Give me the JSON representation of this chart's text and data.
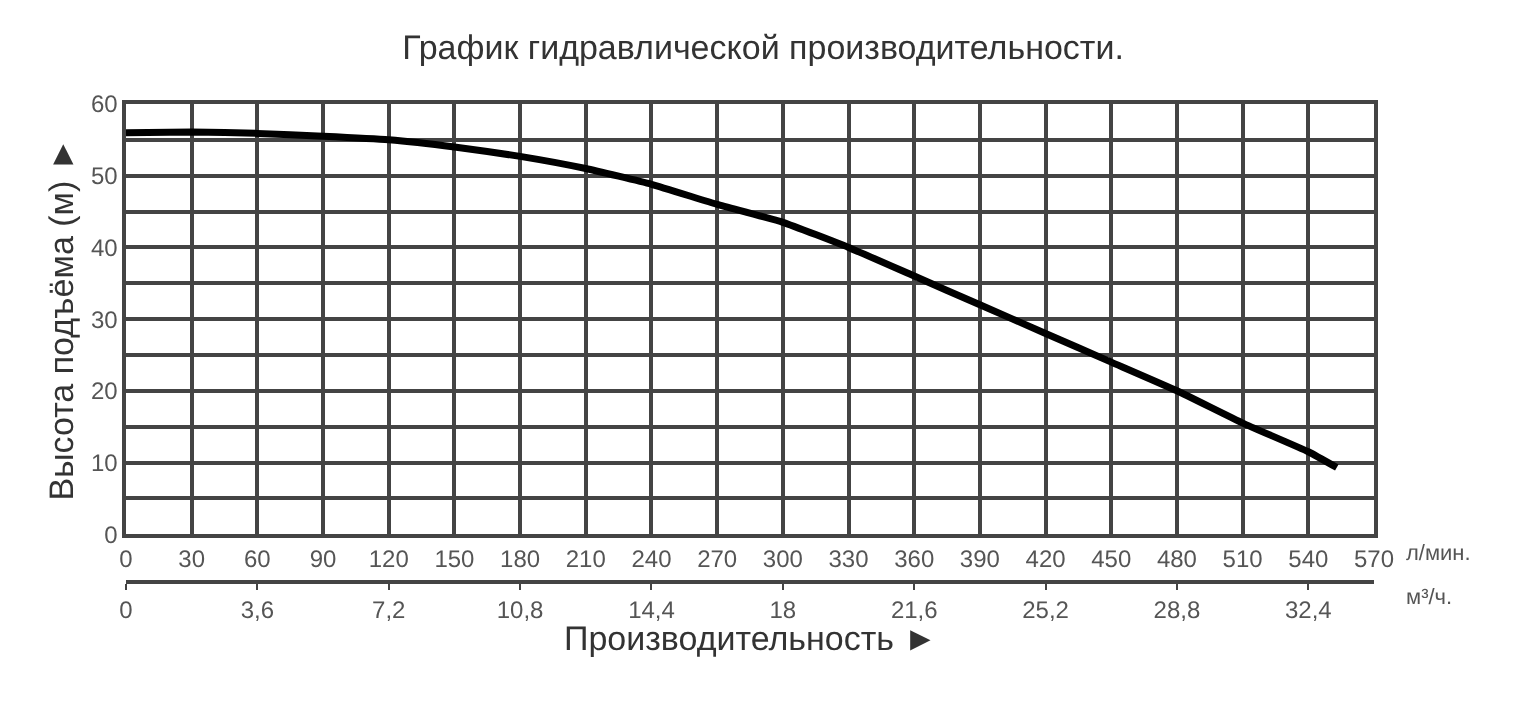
{
  "chart_data": {
    "type": "line",
    "title": "График гидравлической производительности.",
    "xlabel": "Производительность ►",
    "ylabel": "Высота подъёма (м) ►",
    "annotations": [
      "л/мин.",
      "м³/ч."
    ],
    "x": [
      0,
      30,
      60,
      90,
      120,
      150,
      180,
      210,
      240,
      270,
      300,
      330,
      360,
      390,
      420,
      450,
      480,
      510,
      540,
      553
    ],
    "series": [
      {
        "color": "#000000",
        "values": [
          56,
          56.1,
          55.9,
          55.5,
          55,
          54,
          52.7,
          51,
          48.8,
          46,
          43.5,
          40,
          36,
          32,
          28,
          24,
          20,
          15.5,
          11.5,
          9.3
        ]
      }
    ],
    "xlim": [
      0,
      570
    ],
    "xticks": [
      0,
      30,
      60,
      90,
      120,
      150,
      180,
      210,
      240,
      270,
      300,
      330,
      360,
      390,
      420,
      450,
      480,
      510,
      540,
      570
    ],
    "x2lim": [
      0,
      34.2
    ],
    "x2ticks": [
      0,
      {
        "value": 3.6,
        "label": "3,6"
      },
      {
        "value": 7.2,
        "label": "7,2"
      },
      {
        "value": 10.8,
        "label": "10,8"
      },
      {
        "value": 14.4,
        "label": "14,4"
      },
      18,
      {
        "value": 21.6,
        "label": "21,6"
      },
      {
        "value": 25.2,
        "label": "25,2"
      },
      {
        "value": 28.8,
        "label": "28,8"
      },
      {
        "value": 32.4,
        "label": "32,4"
      }
    ],
    "ylim": [
      0,
      60
    ],
    "yticks": [
      0,
      {
        "value": 5,
        "label": null
      },
      10,
      {
        "value": 15,
        "label": null
      },
      20,
      {
        "value": 25,
        "label": null
      },
      30,
      {
        "value": 35,
        "label": null
      },
      40,
      {
        "value": 45,
        "label": null
      },
      50,
      {
        "value": 55,
        "label": null
      },
      60
    ],
    "grid": true,
    "marker": "none",
    "line_style": "solid"
  }
}
